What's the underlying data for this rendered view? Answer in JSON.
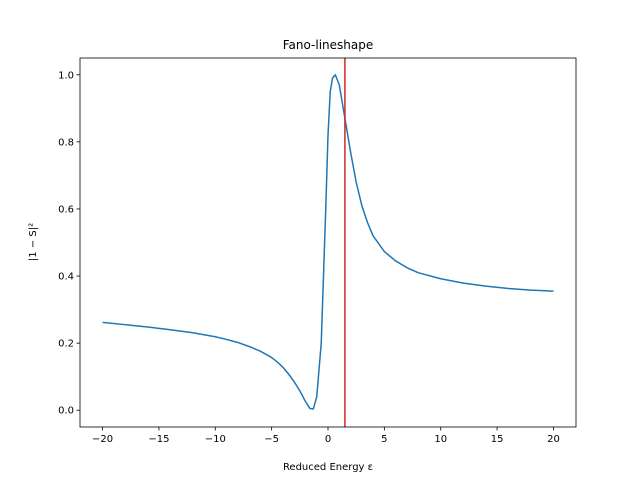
{
  "chart_data": {
    "type": "line",
    "title": "Fano-lineshape",
    "xlabel": "Reduced Energy ε",
    "ylabel": "|1 − S|²",
    "xlim": [
      -22.0,
      22.0
    ],
    "ylim": [
      -0.05,
      1.05
    ],
    "xticks": [
      -20,
      -15,
      -10,
      -5,
      0,
      5,
      10,
      15,
      20
    ],
    "yticks": [
      0.0,
      0.2,
      0.4,
      0.6,
      0.8,
      1.0
    ],
    "xtick_labels": [
      "−20",
      "−15",
      "−10",
      "−5",
      "0",
      "5",
      "10",
      "15",
      "20"
    ],
    "ytick_labels": [
      "0.0",
      "0.2",
      "0.4",
      "0.6",
      "0.8",
      "1.0"
    ],
    "grid": false,
    "series": [
      {
        "color": "#1f77b4",
        "x": [
          -20,
          -18,
          -16,
          -14,
          -12,
          -10,
          -9,
          -8,
          -7,
          -6,
          -5,
          -4.5,
          -4,
          -3.5,
          -3,
          -2.5,
          -2,
          -1.6,
          -1.3,
          -1,
          -0.6,
          -0.2,
          0,
          0.2,
          0.4,
          0.65,
          1,
          1.5,
          2,
          2.5,
          3,
          3.5,
          4,
          5,
          6,
          7,
          8,
          10,
          12,
          14,
          16,
          18,
          20
        ],
        "y": [
          0.262,
          0.255,
          0.248,
          0.24,
          0.231,
          0.219,
          0.211,
          0.202,
          0.19,
          0.176,
          0.157,
          0.144,
          0.128,
          0.108,
          0.085,
          0.058,
          0.026,
          0.005,
          0.004,
          0.04,
          0.2,
          0.6,
          0.82,
          0.95,
          0.99,
          1.0,
          0.97,
          0.87,
          0.77,
          0.68,
          0.61,
          0.56,
          0.52,
          0.473,
          0.445,
          0.425,
          0.41,
          0.392,
          0.379,
          0.37,
          0.363,
          0.358,
          0.355
        ]
      }
    ],
    "vline": {
      "x": 1.5,
      "color": "#d62728"
    }
  }
}
